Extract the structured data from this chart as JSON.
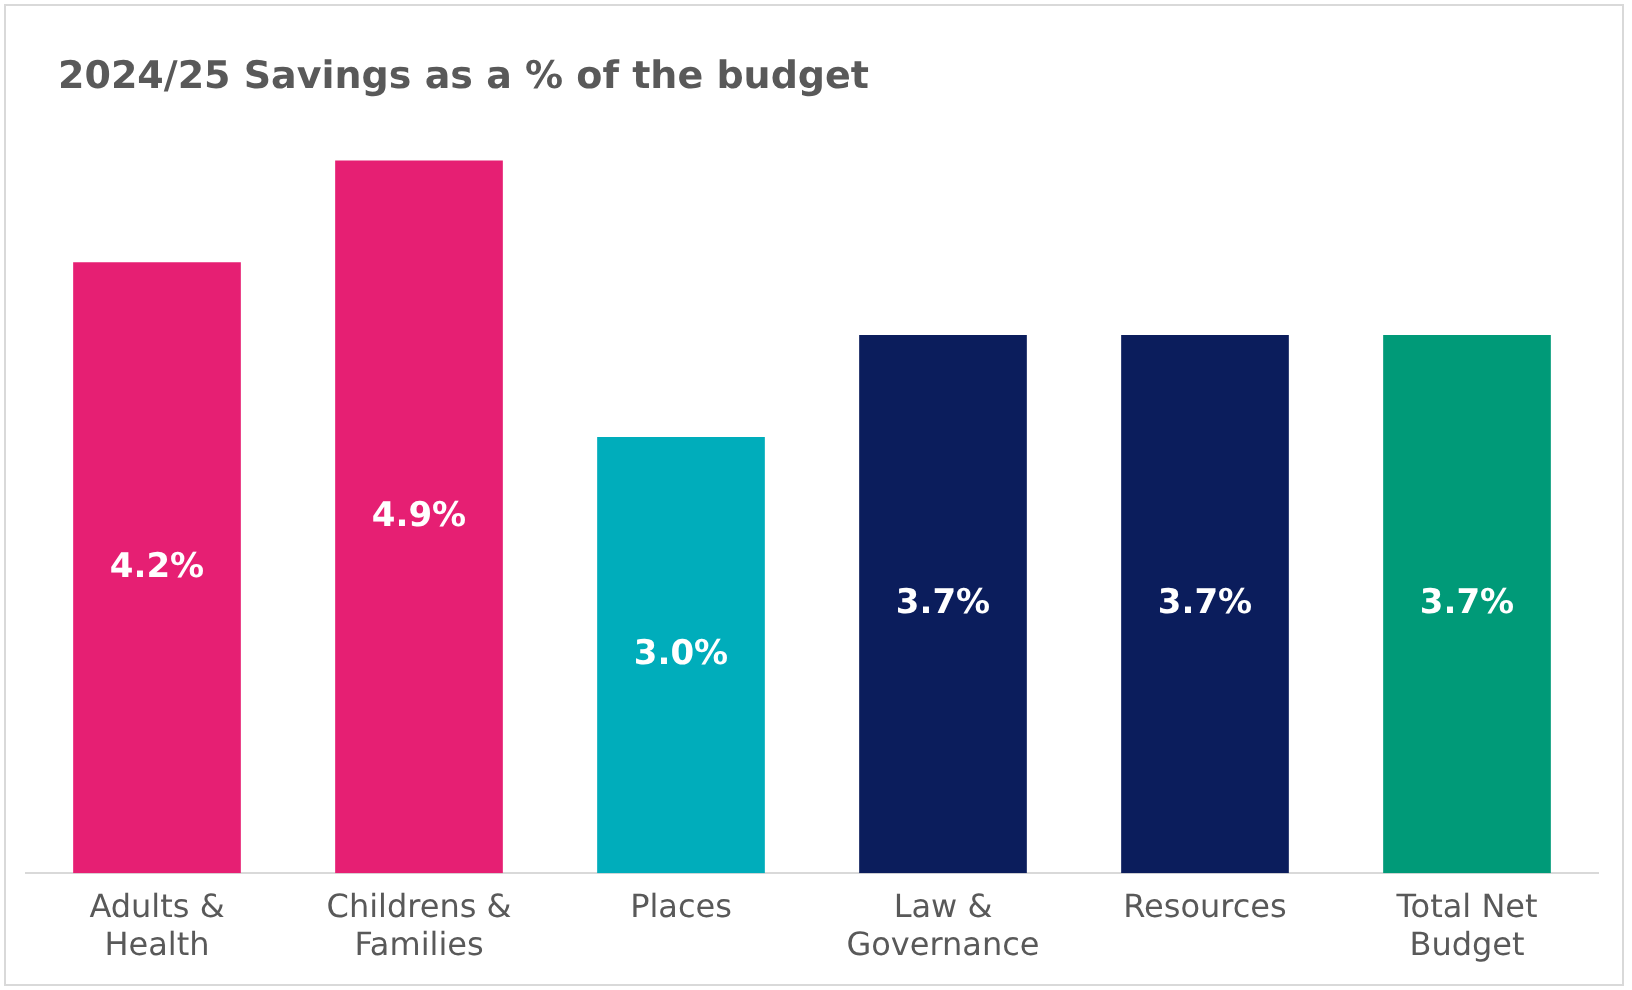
{
  "chart_data": {
    "type": "bar",
    "title": "2024/25 Savings as a % of the budget",
    "categories": [
      "Adults & Health",
      "Childrens & Families",
      "Places",
      "Law & Governance",
      "Resources",
      "Total Net Budget"
    ],
    "values": [
      4.2,
      4.9,
      3.0,
      3.7,
      3.7,
      3.7
    ],
    "colors": [
      "#e61f73",
      "#e61f73",
      "#00adbb",
      "#0b1d5c",
      "#0b1d5c",
      "#009a78"
    ],
    "value_labels": [
      "4.2%",
      "4.9%",
      "3.0%",
      "3.7%",
      "3.7%",
      "3.7%"
    ],
    "grid": false,
    "legend": false,
    "tick_labels": "x"
  }
}
